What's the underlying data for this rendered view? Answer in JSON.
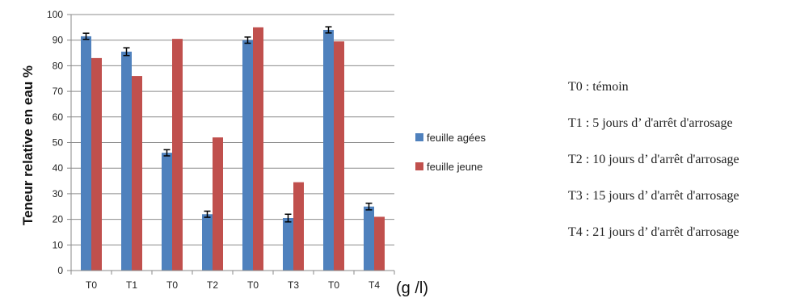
{
  "chart_data": {
    "type": "bar",
    "title": "",
    "xlabel": "(g /l)",
    "ylabel": "Teneur relative en eau %",
    "ylim": [
      0,
      100
    ],
    "yticks": [
      0,
      10,
      20,
      30,
      40,
      50,
      60,
      70,
      80,
      90,
      100
    ],
    "grid": true,
    "legend_position": "right",
    "categories": [
      "T0",
      "T1",
      "T0",
      "T2",
      "T0",
      "T3",
      "T0",
      "T4"
    ],
    "series": [
      {
        "name": "feuille agées",
        "color": "#4F81BD",
        "values": [
          91.5,
          85.5,
          46,
          22,
          90,
          20.5,
          94,
          25
        ],
        "errors": [
          1.2,
          1.5,
          1.2,
          1.2,
          1.2,
          1.5,
          1.2,
          1.3
        ]
      },
      {
        "name": "feuille jeune",
        "color": "#C0504D",
        "values": [
          83,
          76,
          90.5,
          52,
          95,
          34.5,
          89.5,
          21
        ],
        "errors": [
          0,
          0,
          0,
          0,
          0,
          0,
          0,
          0
        ]
      }
    ]
  },
  "notes": [
    "T0 : témoin",
    "T1 : 5 jours d’ d'arrêt d'arrosage",
    "T2 : 10 jours d’ d'arrêt d'arrosage",
    "T3 : 15 jours d’ d'arrêt d'arrosage",
    "T4 : 21 jours d’ d'arrêt d'arrosage"
  ]
}
